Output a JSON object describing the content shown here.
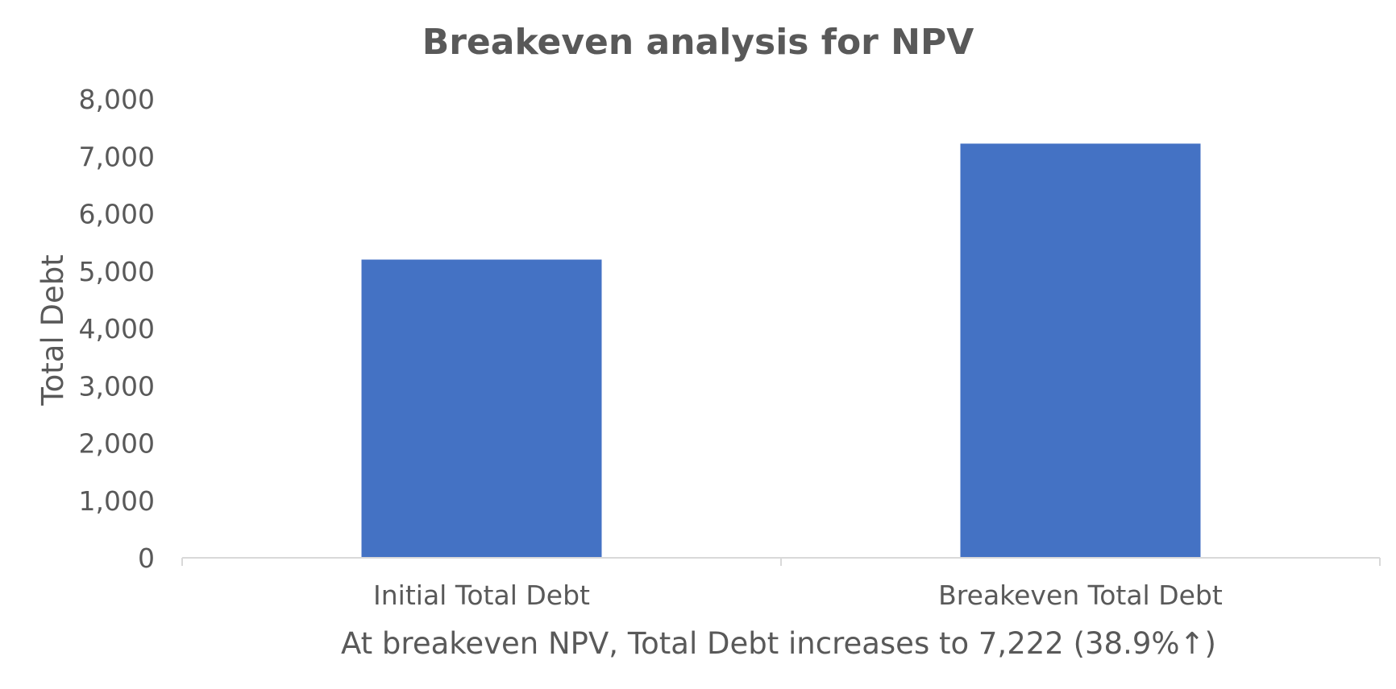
{
  "chart_data": {
    "type": "bar",
    "title": "Breakeven analysis for NPV",
    "xlabel": "At breakeven NPV, Total Debt increases to 7,222 (38.9%↑)",
    "ylabel": "Total Debt",
    "categories": [
      "Initial Total Debt",
      "Breakeven Total Debt"
    ],
    "series": [
      {
        "values": [
          5200,
          7222
        ]
      }
    ],
    "ylim": [
      0,
      8000
    ],
    "yticks": [
      0,
      1000,
      2000,
      3000,
      4000,
      5000,
      6000,
      7000,
      8000
    ],
    "ytick_labels": [
      "0",
      "1,000",
      "2,000",
      "3,000",
      "4,000",
      "5,000",
      "6,000",
      "7,000",
      "8,000"
    ],
    "grid": false,
    "legend": "none",
    "colors": {
      "bar": "#4472C4",
      "axis": "#D9D9D9",
      "text": "#595959"
    }
  }
}
